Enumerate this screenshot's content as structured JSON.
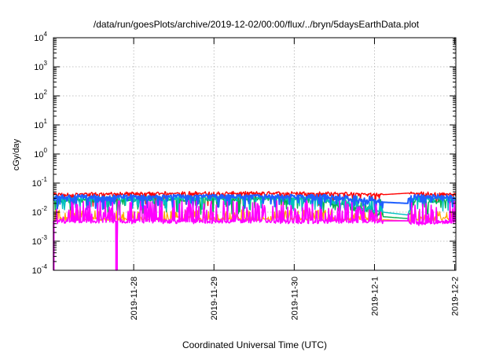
{
  "chart_data": {
    "type": "line",
    "title": "/data/run/goesPlots/archive/2019-12-02/00:00/flux/../bryn/5daysEarthData.plot",
    "xlabel": "Coordinated Universal Time (UTC)",
    "ylabel": "cGy/day",
    "yscale": "log",
    "ylim": [
      0.0001,
      10000
    ],
    "xlim": [
      "2019-11-27T00:00",
      "2019-12-02T00:20"
    ],
    "grid": true,
    "legend": "none",
    "y_tick_labels": [
      {
        "base": "10",
        "exp": "-4"
      },
      {
        "base": "10",
        "exp": "-3"
      },
      {
        "base": "10",
        "exp": "-2"
      },
      {
        "base": "10",
        "exp": "-1"
      },
      {
        "base": "10",
        "exp": "0"
      },
      {
        "base": "10",
        "exp": "1"
      },
      {
        "base": "10",
        "exp": "2"
      },
      {
        "base": "10",
        "exp": "3"
      },
      {
        "base": "10",
        "exp": "4"
      }
    ],
    "x_ticks": [
      {
        "label": "2019-11-28",
        "t": "2019-11-28T00:00"
      },
      {
        "label": "2019-11-29",
        "t": "2019-11-29T00:00"
      },
      {
        "label": "2019-11-30",
        "t": "2019-11-30T00:00"
      },
      {
        "label": "2019-12-1",
        "t": "2019-12-01T00:00"
      },
      {
        "label": "2019-12-2",
        "t": "2019-12-02T00:00"
      }
    ],
    "series": [
      {
        "color": "#ff0000",
        "width": 1.4,
        "upper": 0.045,
        "lower": 0.016,
        "points": [
          [
            "2019-11-27T00:00",
            0.04
          ],
          [
            "2019-11-28T12:00",
            0.045
          ],
          [
            "2019-11-30T06:00",
            0.045
          ],
          [
            "2019-12-01T02:30",
            0.04
          ],
          [
            "2019-12-01T10:00",
            0.045
          ],
          [
            "2019-12-01T12:00",
            0.045
          ],
          [
            "2019-12-02T00:20",
            0.04
          ]
        ]
      },
      {
        "color": "#00b04f",
        "width": 1.4,
        "upper": 0.03,
        "lower": 0.008,
        "points": [
          [
            "2019-11-27T00:00",
            0.025
          ],
          [
            "2019-11-30T06:00",
            0.03
          ],
          [
            "2019-12-01T02:30",
            0.007
          ],
          [
            "2019-12-01T10:00",
            0.006
          ],
          [
            "2019-12-01T12:00",
            0.025
          ],
          [
            "2019-12-02T00:20",
            0.025
          ]
        ]
      },
      {
        "color": "#ffa500",
        "width": 1.2,
        "upper": 0.012,
        "lower": 0.005,
        "points": [
          [
            "2019-11-27T00:00",
            0.006
          ],
          [
            "2019-11-30T06:00",
            0.006
          ],
          [
            "2019-12-01T02:30",
            0.0055
          ],
          [
            "2019-12-01T10:00",
            0.005
          ],
          [
            "2019-12-01T12:00",
            0.006
          ],
          [
            "2019-12-02T00:20",
            0.006
          ]
        ]
      },
      {
        "color": "#00c0c0",
        "width": 1.4,
        "upper": 0.035,
        "lower": 0.01,
        "points": [
          [
            "2019-11-27T00:00",
            0.03
          ],
          [
            "2019-11-30T06:00",
            0.03
          ],
          [
            "2019-12-01T02:30",
            0.01
          ],
          [
            "2019-12-01T10:00",
            0.008
          ],
          [
            "2019-12-01T12:00",
            0.03
          ],
          [
            "2019-12-02T00:20",
            0.03
          ]
        ]
      },
      {
        "color": "#1f5fff",
        "width": 2.0,
        "upper": 0.04,
        "lower": 0.012,
        "points": [
          [
            "2019-11-27T00:00",
            0.03
          ],
          [
            "2019-11-28T12:00",
            0.035
          ],
          [
            "2019-11-30T06:00",
            0.035
          ],
          [
            "2019-12-01T02:30",
            0.022
          ],
          [
            "2019-12-01T10:00",
            0.02
          ],
          [
            "2019-12-01T12:00",
            0.035
          ],
          [
            "2019-12-02T00:20",
            0.03
          ]
        ]
      },
      {
        "color": "#ff00ff",
        "width": 1.6,
        "upper": 0.025,
        "lower": 0.004,
        "points": [
          [
            "2019-11-27T00:00",
            0.005
          ],
          [
            "2019-11-27T00:05",
            0.0001
          ],
          [
            "2019-11-27T00:10",
            0.005
          ],
          [
            "2019-11-27T18:40",
            0.005
          ],
          [
            "2019-11-27T18:45",
            0.0001
          ],
          [
            "2019-11-27T19:00",
            0.0001
          ],
          [
            "2019-11-27T19:05",
            0.005
          ],
          [
            "2019-11-30T06:00",
            0.005
          ],
          [
            "2019-12-01T02:30",
            0.005
          ],
          [
            "2019-12-01T10:00",
            0.005
          ],
          [
            "2019-12-01T12:00",
            0.004
          ],
          [
            "2019-12-02T00:20",
            0.005
          ]
        ]
      }
    ],
    "gap": [
      "2019-12-01T02:30",
      "2019-12-01T10:00"
    ]
  }
}
